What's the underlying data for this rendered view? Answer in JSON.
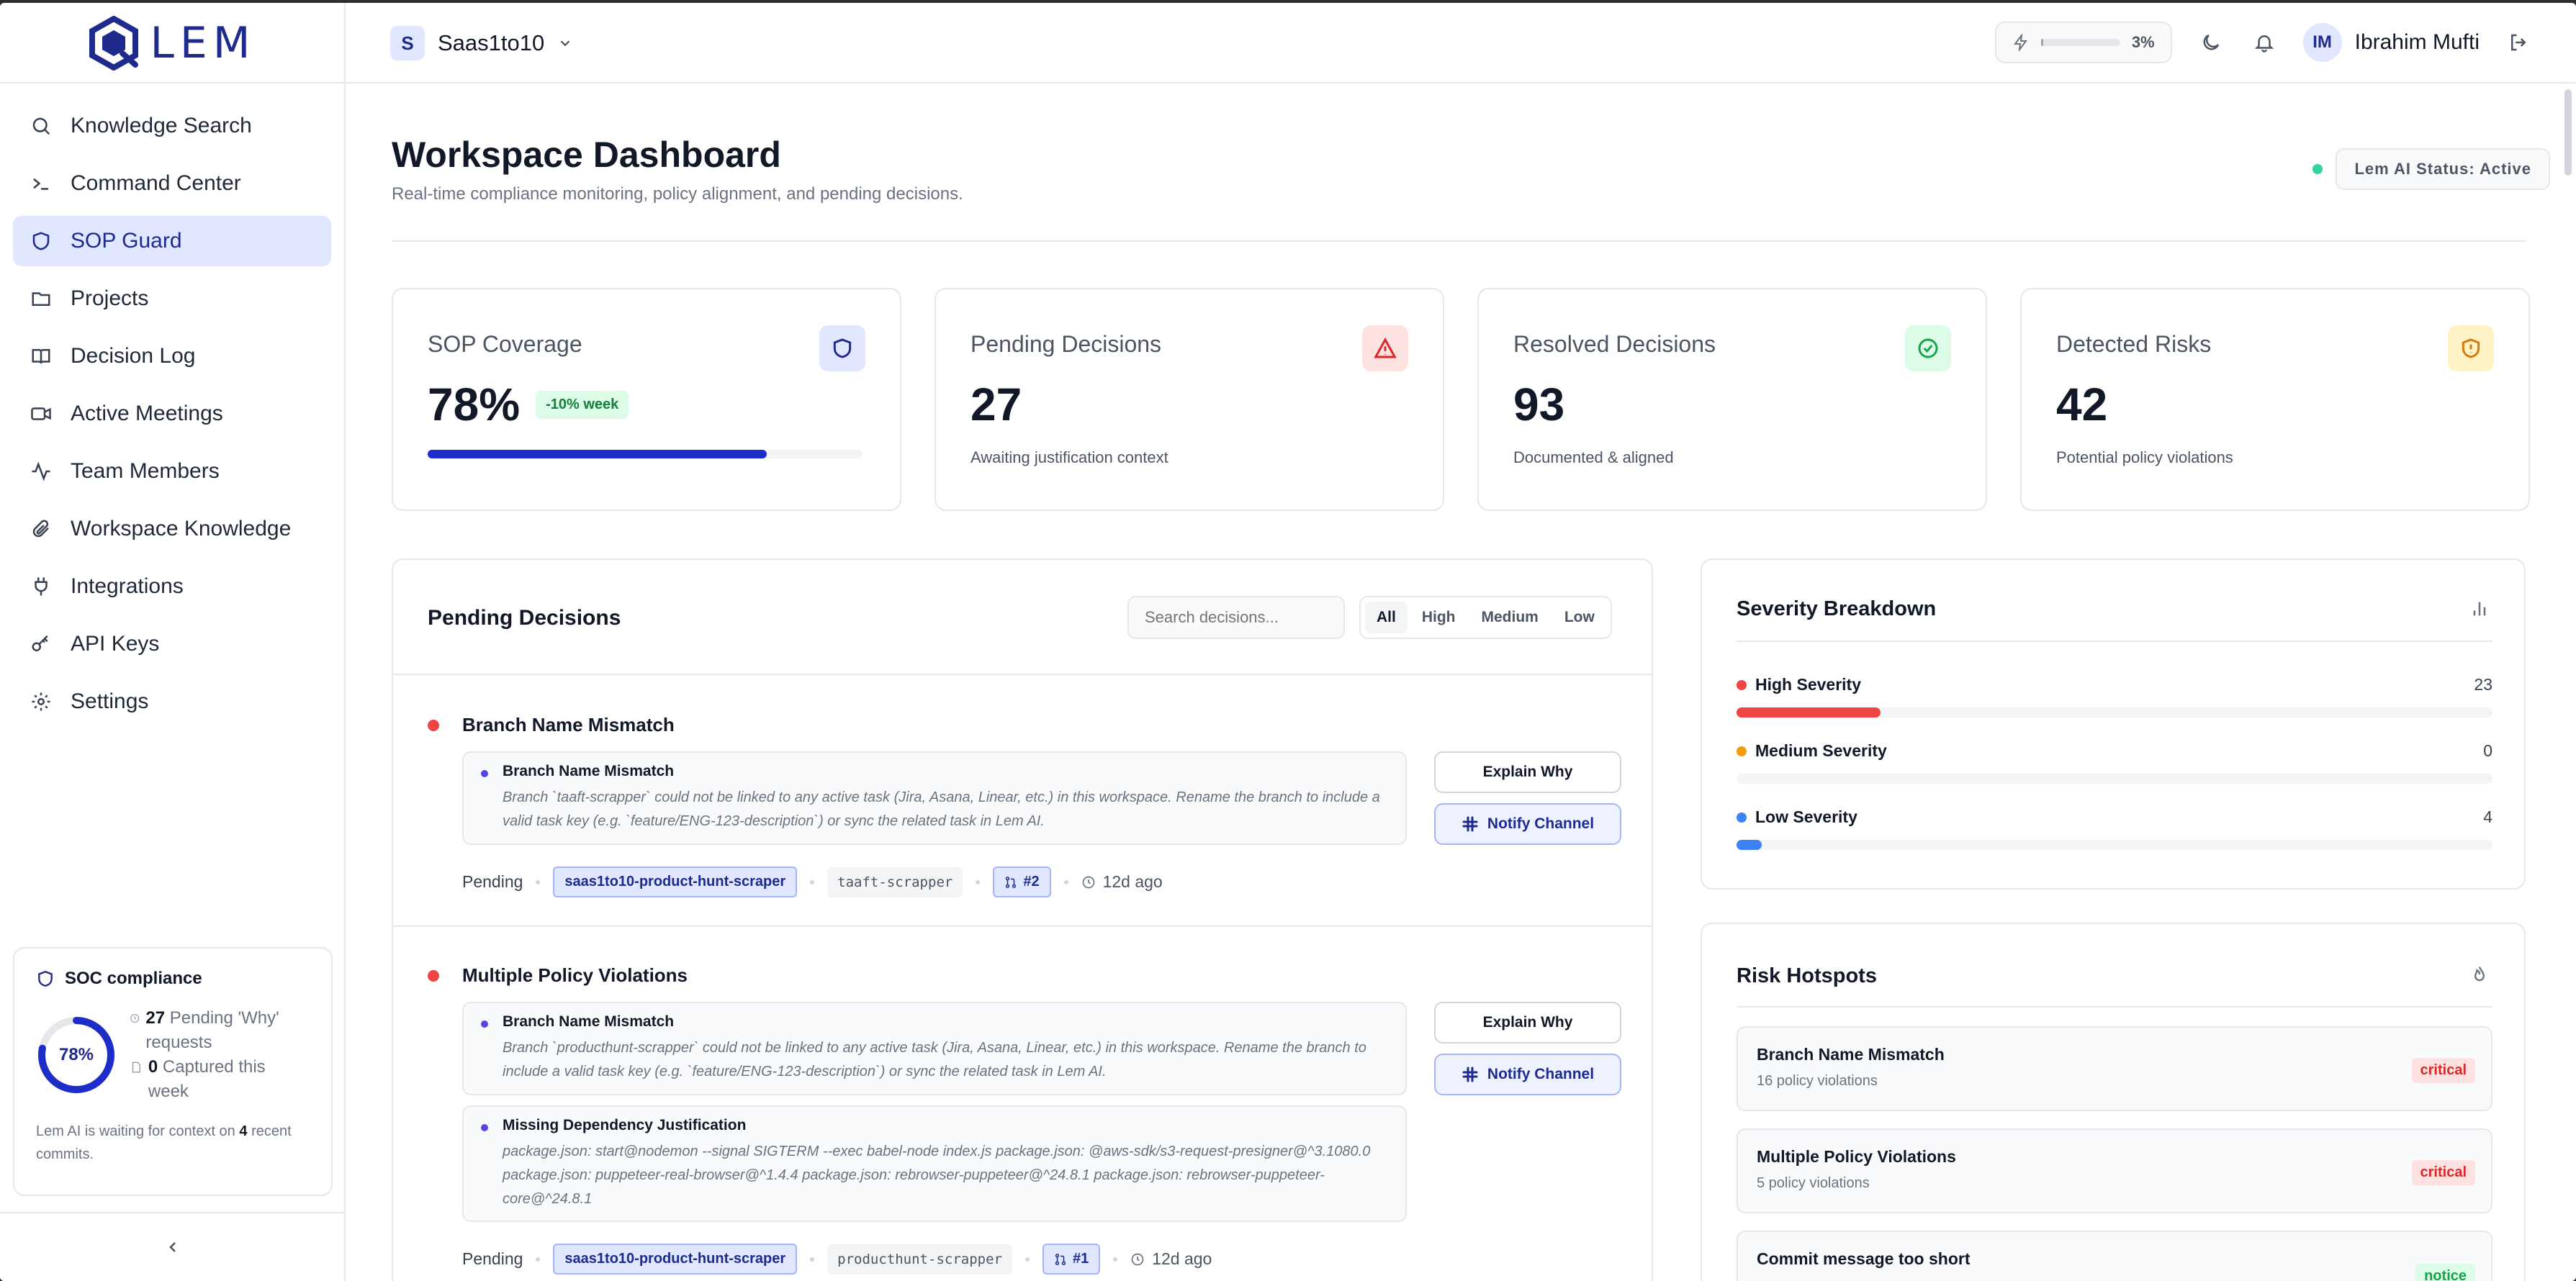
{
  "brand": {
    "logo_text": "LEM"
  },
  "workspace": {
    "initial": "S",
    "name": "Saas1to10"
  },
  "header": {
    "usage_percent": 3,
    "usage_label": "3%",
    "user_initials": "IM",
    "user_name": "Ibrahim Mufti"
  },
  "sidebar": {
    "items": [
      {
        "label": "Knowledge Search",
        "icon": "search-icon"
      },
      {
        "label": "Command Center",
        "icon": "terminal-icon"
      },
      {
        "label": "SOP Guard",
        "icon": "shield-icon"
      },
      {
        "label": "Projects",
        "icon": "folder-icon"
      },
      {
        "label": "Decision Log",
        "icon": "book-icon"
      },
      {
        "label": "Active Meetings",
        "icon": "video-icon"
      },
      {
        "label": "Team Members",
        "icon": "activity-icon"
      },
      {
        "label": "Workspace Knowledge",
        "icon": "paperclip-icon"
      },
      {
        "label": "Integrations",
        "icon": "plug-icon"
      },
      {
        "label": "API Keys",
        "icon": "key-icon"
      },
      {
        "label": "Settings",
        "icon": "gear-icon"
      }
    ],
    "active_index": 2,
    "soc": {
      "title": "SOC compliance",
      "percent": 78,
      "percent_label": "78%",
      "pending_count": "27",
      "pending_label": "Pending 'Why' requests",
      "captured_count": "0",
      "captured_label": "Captured this week",
      "footer_pre": "Lem AI is waiting for context on",
      "footer_count": "4",
      "footer_post": "recent commits."
    }
  },
  "page": {
    "title": "Workspace Dashboard",
    "subtitle": "Real-time compliance monitoring, policy alignment, and pending decisions.",
    "ai_status": "Lem AI Status: Active"
  },
  "stats": [
    {
      "label": "SOP Coverage",
      "value": "78%",
      "delta": "-10% week",
      "progress": 78,
      "icon": "shield-icon"
    },
    {
      "label": "Pending Decisions",
      "value": "27",
      "desc": "Awaiting justification context",
      "icon": "alert-triangle-icon"
    },
    {
      "label": "Resolved Decisions",
      "value": "93",
      "desc": "Documented & aligned",
      "icon": "check-circle-icon"
    },
    {
      "label": "Detected Risks",
      "value": "42",
      "desc": "Potential policy violations",
      "icon": "shield-alert-icon"
    }
  ],
  "pending": {
    "title": "Pending Decisions",
    "search_placeholder": "Search decisions...",
    "filters": [
      "All",
      "High",
      "Medium",
      "Low"
    ],
    "active_filter": "All",
    "explain_label": "Explain Why",
    "notify_label": "Notify Channel",
    "decisions": [
      {
        "title": "Branch Name Mismatch",
        "violations": [
          {
            "title": "Branch Name Mismatch",
            "text": "Branch `taaft-scrapper` could not be linked to any active task (Jira, Asana, Linear, etc.) in this workspace. Rename the branch to include a valid task key (e.g. `feature/ENG-123-description`) or sync the related task in Lem AI."
          }
        ],
        "status": "Pending",
        "repo": "saas1to10-product-hunt-scraper",
        "branch": "taaft-scrapper",
        "pr": "#2",
        "ago": "12d ago"
      },
      {
        "title": "Multiple Policy Violations",
        "violations": [
          {
            "title": "Branch Name Mismatch",
            "text": "Branch `producthunt-scrapper` could not be linked to any active task (Jira, Asana, Linear, etc.) in this workspace. Rename the branch to include a valid task key (e.g. `feature/ENG-123-description`) or sync the related task in Lem AI."
          },
          {
            "title": "Missing Dependency Justification",
            "text": "package.json: start@nodemon --signal SIGTERM --exec babel-node index.js package.json: @aws-sdk/s3-request-presigner@^3.1080.0 package.json: puppeteer-real-browser@^1.4.4 package.json: rebrowser-puppeteer@^24.8.1 package.json: rebrowser-puppeteer-core@^24.8.1"
          }
        ],
        "status": "Pending",
        "repo": "saas1to10-product-hunt-scraper",
        "branch": "producthunt-scrapper",
        "pr": "#1",
        "ago": "12d ago"
      }
    ]
  },
  "severity": {
    "title": "Severity Breakdown",
    "rows": [
      {
        "label": "High Severity",
        "count": "23",
        "fraction": 0.19,
        "color": "#ef4444"
      },
      {
        "label": "Medium Severity",
        "count": "0",
        "fraction": 0.0,
        "color": "#f59e0b"
      },
      {
        "label": "Low Severity",
        "count": "4",
        "fraction": 0.033,
        "color": "#3b82f6"
      }
    ]
  },
  "hotspots": {
    "title": "Risk Hotspots",
    "items": [
      {
        "name": "Branch Name Mismatch",
        "count": "16 policy violations",
        "level": "critical"
      },
      {
        "name": "Multiple Policy Violations",
        "count": "5 policy violations",
        "level": "critical"
      },
      {
        "name": "Commit message too short",
        "count": "",
        "level": "notice"
      }
    ]
  }
}
